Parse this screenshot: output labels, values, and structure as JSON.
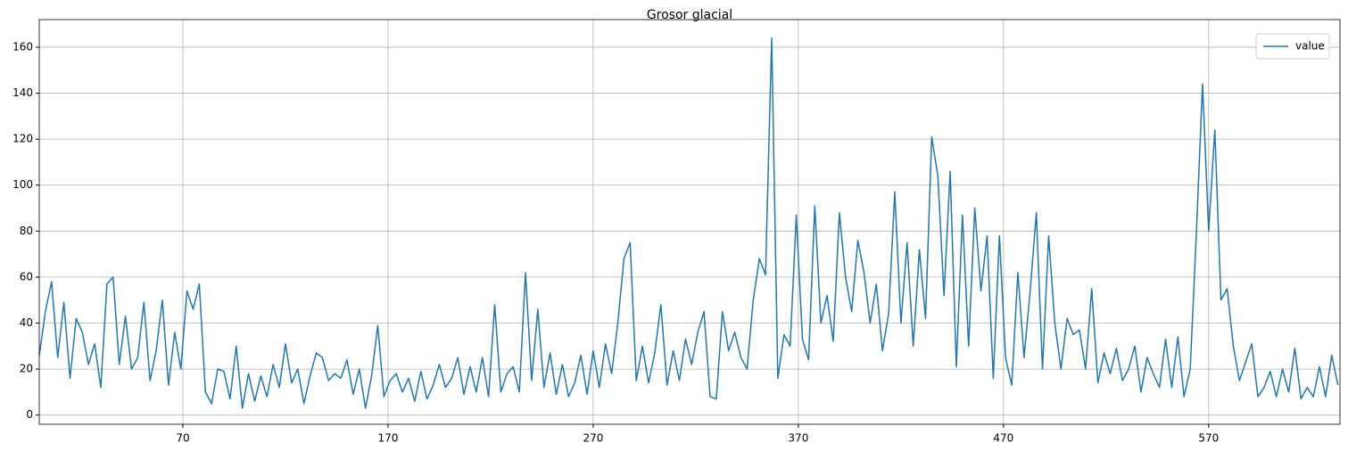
{
  "chart_data": {
    "type": "line",
    "title": "Grosor glacial",
    "x": [
      0,
      3,
      6,
      9,
      12,
      15,
      18,
      21,
      24,
      27,
      30,
      33,
      36,
      39,
      42,
      45,
      48,
      51,
      54,
      57,
      60,
      63,
      66,
      69,
      72,
      75,
      78,
      81,
      84,
      87,
      90,
      93,
      96,
      99,
      102,
      105,
      108,
      111,
      114,
      117,
      120,
      123,
      126,
      129,
      132,
      135,
      138,
      141,
      144,
      147,
      150,
      153,
      156,
      159,
      162,
      165,
      168,
      171,
      174,
      177,
      180,
      183,
      186,
      189,
      192,
      195,
      198,
      201,
      204,
      207,
      210,
      213,
      216,
      219,
      222,
      225,
      228,
      231,
      234,
      237,
      240,
      243,
      246,
      249,
      252,
      255,
      258,
      261,
      264,
      267,
      270,
      273,
      276,
      279,
      282,
      285,
      288,
      291,
      294,
      297,
      300,
      303,
      306,
      309,
      312,
      315,
      318,
      321,
      324,
      327,
      330,
      333,
      336,
      339,
      342,
      345,
      348,
      351,
      354,
      357,
      360,
      363,
      366,
      369,
      372,
      375,
      378,
      381,
      384,
      387,
      390,
      393,
      396,
      399,
      402,
      405,
      408,
      411,
      414,
      417,
      420,
      423,
      426,
      429,
      432,
      435,
      438,
      441,
      444,
      447,
      450,
      453,
      456,
      459,
      462,
      465,
      468,
      471,
      474,
      477,
      480,
      483,
      486,
      489,
      492,
      495,
      498,
      501,
      504,
      507,
      510,
      513,
      516,
      519,
      522,
      525,
      528,
      531,
      534,
      537,
      540,
      543,
      546,
      549,
      552,
      555,
      558,
      561,
      564,
      567,
      570,
      573,
      576,
      579,
      582,
      585,
      588,
      591,
      594,
      597,
      600,
      603,
      606,
      609,
      612,
      615,
      618,
      621,
      624,
      627,
      630,
      633
    ],
    "series": [
      {
        "name": "value",
        "color": "#1f77b4",
        "values": [
          26,
          45,
          58,
          25,
          49,
          16,
          42,
          36,
          22,
          31,
          12,
          57,
          60,
          22,
          43,
          20,
          25,
          49,
          15,
          28,
          50,
          13,
          36,
          20,
          54,
          46,
          57,
          10,
          5,
          20,
          19,
          7,
          30,
          3,
          18,
          6,
          17,
          8,
          22,
          12,
          31,
          14,
          20,
          5,
          17,
          27,
          25,
          15,
          18,
          16,
          24,
          9,
          20,
          3,
          17,
          39,
          8,
          15,
          18,
          10,
          16,
          6,
          19,
          7,
          13,
          22,
          12,
          16,
          25,
          9,
          21,
          10,
          25,
          8,
          48,
          10,
          18,
          21,
          10,
          62,
          15,
          46,
          12,
          27,
          9,
          22,
          8,
          14,
          26,
          9,
          28,
          12,
          31,
          18,
          40,
          68,
          75,
          15,
          30,
          14,
          27,
          48,
          13,
          28,
          15,
          33,
          22,
          36,
          45,
          8,
          7,
          45,
          28,
          36,
          25,
          20,
          50,
          68,
          61,
          164,
          16,
          35,
          30,
          87,
          33,
          24,
          91,
          40,
          52,
          32,
          88,
          60,
          45,
          76,
          62,
          40,
          57,
          28,
          44,
          97,
          40,
          75,
          30,
          72,
          42,
          121,
          104,
          52,
          106,
          21,
          87,
          30,
          90,
          54,
          78,
          16,
          78,
          25,
          13,
          62,
          25,
          54,
          88,
          20,
          78,
          40,
          20,
          42,
          35,
          37,
          20,
          55,
          14,
          27,
          18,
          29,
          15,
          20,
          30,
          10,
          25,
          18,
          12,
          33,
          12,
          34,
          8,
          20,
          79,
          144,
          80,
          124,
          50,
          55,
          30,
          15,
          23,
          31,
          8,
          12,
          19,
          8,
          20,
          10,
          29,
          7,
          12,
          8,
          21,
          8,
          26,
          13
        ]
      }
    ],
    "xlim": [
      0,
      634
    ],
    "ylim": [
      -4,
      172
    ],
    "xticks": [
      70,
      170,
      270,
      370,
      470,
      570
    ],
    "yticks": [
      0,
      20,
      40,
      60,
      80,
      100,
      120,
      140,
      160
    ],
    "grid": true,
    "legend": "upper right"
  }
}
